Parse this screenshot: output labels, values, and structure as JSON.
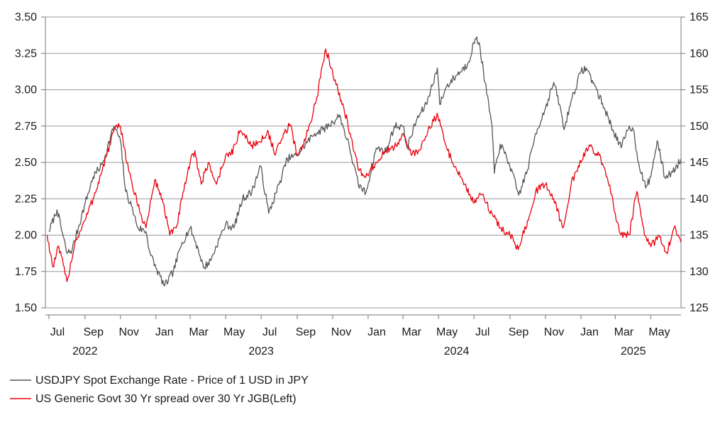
{
  "chart_data": {
    "type": "line",
    "title": "",
    "xlabel": "",
    "ylabel_left": "",
    "ylabel_right": "",
    "grid": true,
    "legend_position": "bottom-left",
    "x_range": [
      "2022-06-25",
      "2025-06-22"
    ],
    "ylim_left": [
      1.5,
      3.5
    ],
    "ylim_right": [
      125,
      165
    ],
    "y_ticks_left": [
      "3.50",
      "3.25",
      "3.00",
      "2.75",
      "2.50",
      "2.25",
      "2.00",
      "1.75",
      "1.50"
    ],
    "y_ticks_right": [
      "165",
      "160",
      "155",
      "150",
      "145",
      "140",
      "135",
      "130",
      "125"
    ],
    "x_ticks": [
      {
        "label": "Jul",
        "date": "2022-07-01"
      },
      {
        "label": "Sep",
        "date": "2022-09-01"
      },
      {
        "label": "Nov",
        "date": "2022-11-01"
      },
      {
        "label": "Jan",
        "date": "2023-01-01"
      },
      {
        "label": "Mar",
        "date": "2023-03-01"
      },
      {
        "label": "May",
        "date": "2023-05-01"
      },
      {
        "label": "Jul",
        "date": "2023-07-01"
      },
      {
        "label": "Sep",
        "date": "2023-09-01"
      },
      {
        "label": "Nov",
        "date": "2023-11-01"
      },
      {
        "label": "Jan",
        "date": "2024-01-01"
      },
      {
        "label": "Mar",
        "date": "2024-03-01"
      },
      {
        "label": "May",
        "date": "2024-05-01"
      },
      {
        "label": "Jul",
        "date": "2024-07-01"
      },
      {
        "label": "Sep",
        "date": "2024-09-01"
      },
      {
        "label": "Nov",
        "date": "2024-11-01"
      },
      {
        "label": "Jan",
        "date": "2025-01-01"
      },
      {
        "label": "Mar",
        "date": "2025-03-01"
      },
      {
        "label": "May",
        "date": "2025-05-01"
      }
    ],
    "year_labels": [
      {
        "label": "2022",
        "date": "2022-09-01"
      },
      {
        "label": "2023",
        "date": "2023-07-01"
      },
      {
        "label": "2024",
        "date": "2024-06-01"
      },
      {
        "label": "2025",
        "date": "2025-04-01"
      }
    ],
    "series": [
      {
        "name": "USDJPY Spot Exchange Rate - Price of 1 USD in JPY",
        "axis": "right",
        "color": "#555555",
        "points": [
          [
            "2022-07-01",
            135.5
          ],
          [
            "2022-07-15",
            138.5
          ],
          [
            "2022-08-01",
            132.5
          ],
          [
            "2022-08-10",
            133.0
          ],
          [
            "2022-08-31",
            139.0
          ],
          [
            "2022-09-15",
            143.0
          ],
          [
            "2022-10-01",
            144.8
          ],
          [
            "2022-10-21",
            150.0
          ],
          [
            "2022-11-01",
            148.0
          ],
          [
            "2022-11-10",
            141.0
          ],
          [
            "2022-11-20",
            139.0
          ],
          [
            "2022-12-01",
            136.0
          ],
          [
            "2022-12-15",
            135.5
          ],
          [
            "2022-12-22",
            132.5
          ],
          [
            "2023-01-01",
            130.5
          ],
          [
            "2023-01-16",
            128.0
          ],
          [
            "2023-01-31",
            130.0
          ],
          [
            "2023-02-15",
            134.0
          ],
          [
            "2023-03-01",
            136.0
          ],
          [
            "2023-03-15",
            133.0
          ],
          [
            "2023-03-24",
            130.5
          ],
          [
            "2023-04-05",
            131.5
          ],
          [
            "2023-04-20",
            134.5
          ],
          [
            "2023-05-01",
            136.5
          ],
          [
            "2023-05-15",
            136.0
          ],
          [
            "2023-05-30",
            140.0
          ],
          [
            "2023-06-15",
            141.0
          ],
          [
            "2023-06-30",
            144.5
          ],
          [
            "2023-07-14",
            138.0
          ],
          [
            "2023-08-01",
            142.0
          ],
          [
            "2023-08-15",
            145.5
          ],
          [
            "2023-09-01",
            146.0
          ],
          [
            "2023-09-15",
            147.5
          ],
          [
            "2023-10-01",
            149.0
          ],
          [
            "2023-10-15",
            149.5
          ],
          [
            "2023-11-01",
            150.5
          ],
          [
            "2023-11-13",
            151.5
          ],
          [
            "2023-11-30",
            147.0
          ],
          [
            "2023-12-15",
            142.0
          ],
          [
            "2023-12-28",
            140.8
          ],
          [
            "2024-01-15",
            147.0
          ],
          [
            "2024-02-01",
            146.5
          ],
          [
            "2024-02-15",
            150.0
          ],
          [
            "2024-03-01",
            150.0
          ],
          [
            "2024-03-08",
            147.0
          ],
          [
            "2024-03-25",
            151.0
          ],
          [
            "2024-04-10",
            153.0
          ],
          [
            "2024-04-29",
            158.0
          ],
          [
            "2024-05-03",
            153.0
          ],
          [
            "2024-05-15",
            155.5
          ],
          [
            "2024-06-01",
            157.0
          ],
          [
            "2024-06-20",
            158.5
          ],
          [
            "2024-07-03",
            162.0
          ],
          [
            "2024-07-10",
            161.5
          ],
          [
            "2024-07-20",
            156.0
          ],
          [
            "2024-08-01",
            150.0
          ],
          [
            "2024-08-05",
            143.5
          ],
          [
            "2024-08-15",
            147.5
          ],
          [
            "2024-08-30",
            145.0
          ],
          [
            "2024-09-16",
            140.5
          ],
          [
            "2024-10-01",
            144.0
          ],
          [
            "2024-10-15",
            149.0
          ],
          [
            "2024-11-01",
            152.5
          ],
          [
            "2024-11-15",
            156.0
          ],
          [
            "2024-11-25",
            153.0
          ],
          [
            "2024-12-03",
            149.5
          ],
          [
            "2024-12-15",
            153.5
          ],
          [
            "2025-01-01",
            157.5
          ],
          [
            "2025-01-10",
            158.0
          ],
          [
            "2025-01-25",
            155.5
          ],
          [
            "2025-02-10",
            152.5
          ],
          [
            "2025-02-25",
            149.5
          ],
          [
            "2025-03-11",
            147.0
          ],
          [
            "2025-03-25",
            150.0
          ],
          [
            "2025-04-01",
            149.5
          ],
          [
            "2025-04-10",
            145.0
          ],
          [
            "2025-04-22",
            141.5
          ],
          [
            "2025-05-01",
            143.0
          ],
          [
            "2025-05-12",
            148.0
          ],
          [
            "2025-05-25",
            143.0
          ],
          [
            "2025-06-05",
            143.5
          ],
          [
            "2025-06-15",
            144.5
          ],
          [
            "2025-06-22",
            145.5
          ]
        ]
      },
      {
        "name": "US Generic Govt 30 Yr spread over 30 Yr JGB(Left)",
        "axis": "left",
        "color": "#e8000b",
        "points": [
          [
            "2022-06-28",
            2.0
          ],
          [
            "2022-07-08",
            1.78
          ],
          [
            "2022-07-18",
            1.92
          ],
          [
            "2022-08-01",
            1.68
          ],
          [
            "2022-08-15",
            1.95
          ],
          [
            "2022-09-01",
            2.1
          ],
          [
            "2022-09-15",
            2.25
          ],
          [
            "2022-10-01",
            2.45
          ],
          [
            "2022-10-21",
            2.72
          ],
          [
            "2022-11-01",
            2.75
          ],
          [
            "2022-11-15",
            2.45
          ],
          [
            "2022-12-01",
            2.2
          ],
          [
            "2022-12-15",
            2.05
          ],
          [
            "2022-12-30",
            2.38
          ],
          [
            "2023-01-12",
            2.25
          ],
          [
            "2023-01-25",
            2.0
          ],
          [
            "2023-02-05",
            2.05
          ],
          [
            "2023-02-15",
            2.25
          ],
          [
            "2023-03-01",
            2.5
          ],
          [
            "2023-03-09",
            2.58
          ],
          [
            "2023-03-20",
            2.35
          ],
          [
            "2023-04-01",
            2.5
          ],
          [
            "2023-04-15",
            2.35
          ],
          [
            "2023-05-01",
            2.55
          ],
          [
            "2023-05-10",
            2.55
          ],
          [
            "2023-05-26",
            2.72
          ],
          [
            "2023-06-15",
            2.62
          ],
          [
            "2023-06-30",
            2.64
          ],
          [
            "2023-07-12",
            2.72
          ],
          [
            "2023-07-25",
            2.55
          ],
          [
            "2023-08-10",
            2.7
          ],
          [
            "2023-08-20",
            2.76
          ],
          [
            "2023-09-01",
            2.55
          ],
          [
            "2023-09-15",
            2.65
          ],
          [
            "2023-10-05",
            2.95
          ],
          [
            "2023-10-20",
            3.28
          ],
          [
            "2023-10-30",
            3.15
          ],
          [
            "2023-11-10",
            3.0
          ],
          [
            "2023-11-20",
            2.88
          ],
          [
            "2023-12-01",
            2.7
          ],
          [
            "2023-12-15",
            2.45
          ],
          [
            "2023-12-28",
            2.4
          ],
          [
            "2024-01-15",
            2.5
          ],
          [
            "2024-02-01",
            2.58
          ],
          [
            "2024-02-15",
            2.6
          ],
          [
            "2024-03-01",
            2.7
          ],
          [
            "2024-03-15",
            2.55
          ],
          [
            "2024-04-01",
            2.6
          ],
          [
            "2024-04-15",
            2.75
          ],
          [
            "2024-04-30",
            2.82
          ],
          [
            "2024-05-15",
            2.6
          ],
          [
            "2024-06-01",
            2.45
          ],
          [
            "2024-06-15",
            2.35
          ],
          [
            "2024-07-01",
            2.22
          ],
          [
            "2024-07-15",
            2.28
          ],
          [
            "2024-08-01",
            2.15
          ],
          [
            "2024-08-15",
            2.05
          ],
          [
            "2024-09-01",
            2.0
          ],
          [
            "2024-09-15",
            1.9
          ],
          [
            "2024-10-01",
            2.1
          ],
          [
            "2024-10-15",
            2.3
          ],
          [
            "2024-11-01",
            2.35
          ],
          [
            "2024-11-15",
            2.25
          ],
          [
            "2024-12-01",
            2.05
          ],
          [
            "2024-12-15",
            2.35
          ],
          [
            "2025-01-01",
            2.5
          ],
          [
            "2025-01-15",
            2.62
          ],
          [
            "2025-02-01",
            2.55
          ],
          [
            "2025-02-15",
            2.4
          ],
          [
            "2025-03-01",
            2.15
          ],
          [
            "2025-03-11",
            2.0
          ],
          [
            "2025-03-25",
            2.0
          ],
          [
            "2025-04-07",
            2.3
          ],
          [
            "2025-04-20",
            2.0
          ],
          [
            "2025-05-01",
            1.92
          ],
          [
            "2025-05-15",
            2.0
          ],
          [
            "2025-05-28",
            1.88
          ],
          [
            "2025-06-10",
            2.05
          ],
          [
            "2025-06-22",
            1.95
          ]
        ]
      }
    ]
  }
}
